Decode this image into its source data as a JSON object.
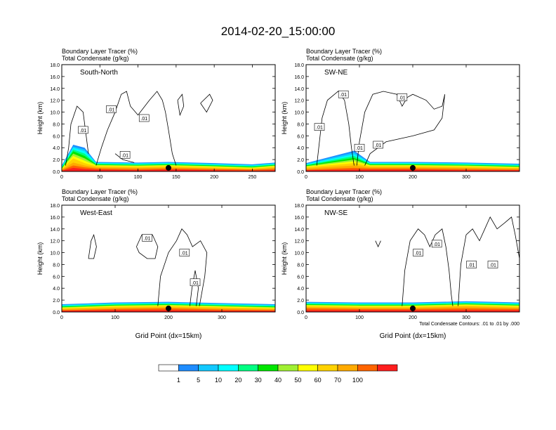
{
  "title": "2014-02-20_15:00:00",
  "colors": {
    "tracer_levels": [
      "#ffffff",
      "#1e8cff",
      "#12c8ff",
      "#00ffff",
      "#00ff82",
      "#00e600",
      "#a0f032",
      "#ffff00",
      "#ffd200",
      "#ffaa00",
      "#ff6400",
      "#ff1e1e"
    ],
    "contour": "#000000"
  },
  "chart_data": [
    {
      "type": "heatmap",
      "name_label": "South-North",
      "subtitle_line1": "Boundary Layer Tracer   (%)",
      "subtitle_line2": "Total Condensate   (g/kg)",
      "ylabel": "Height (km)",
      "xlabel": "",
      "xlim": [
        0,
        280
      ],
      "ylim": [
        0,
        18
      ],
      "xticks": [
        0,
        50,
        100,
        150,
        200,
        250
      ],
      "yticks": [
        "0.0",
        "2.0",
        "4.0",
        "6.0",
        "8.0",
        "10.0",
        "12.0",
        "14.0",
        "16.0",
        "18.0"
      ],
      "marker_x": 140,
      "contour_labels": [
        {
          "text": ".01",
          "x": 28,
          "y": 7.0
        },
        {
          "text": ".01",
          "x": 65,
          "y": 10.5
        },
        {
          "text": ".01",
          "x": 108,
          "y": 9.0
        },
        {
          "text": ".01",
          "x": 83,
          "y": 2.8
        }
      ],
      "contours": [
        [
          [
            5,
            1
          ],
          [
            9,
            4
          ],
          [
            12,
            8
          ],
          [
            20,
            11
          ],
          [
            28,
            10
          ],
          [
            32,
            6
          ],
          [
            35,
            3
          ]
        ],
        [
          [
            45,
            1
          ],
          [
            52,
            4
          ],
          [
            60,
            7
          ],
          [
            70,
            10
          ],
          [
            78,
            13
          ],
          [
            85,
            13.5
          ],
          [
            90,
            11
          ],
          [
            100,
            9.5
          ],
          [
            115,
            12
          ],
          [
            125,
            13.5
          ],
          [
            132,
            12
          ],
          [
            136,
            10
          ],
          [
            140,
            7
          ],
          [
            145,
            3
          ],
          [
            150,
            1
          ]
        ],
        [
          [
            70,
            3
          ],
          [
            80,
            2
          ],
          [
            95,
            1.5
          ]
        ],
        [
          [
            152,
            12
          ],
          [
            155,
            9.5
          ],
          [
            160,
            11
          ],
          [
            158,
            13
          ],
          [
            152,
            12
          ]
        ],
        [
          [
            182,
            11.5
          ],
          [
            190,
            10
          ],
          [
            198,
            12
          ],
          [
            194,
            13
          ],
          [
            182,
            11.5
          ]
        ]
      ],
      "tracer_profile": [
        {
          "x": 0,
          "depth": [
            1.0,
            0.9,
            0.8,
            0.7,
            0.6,
            0.5,
            0.45,
            0.4,
            0.3,
            0.2,
            0.1
          ]
        },
        {
          "x": 15,
          "depth": [
            4.5,
            4.2,
            4.0,
            3.7,
            3.4,
            3.0,
            2.6,
            2.2,
            1.5,
            1.0,
            0.6
          ]
        },
        {
          "x": 30,
          "depth": [
            4.0,
            3.7,
            3.4,
            3.0,
            2.6,
            2.2,
            1.8,
            1.4,
            1.0,
            0.7,
            0.4
          ]
        },
        {
          "x": 45,
          "depth": [
            1.6,
            1.5,
            1.4,
            1.3,
            1.2,
            1.1,
            1.0,
            0.9,
            0.7,
            0.5,
            0.3
          ]
        },
        {
          "x": 100,
          "depth": [
            1.5,
            1.4,
            1.3,
            1.2,
            1.1,
            1.0,
            0.9,
            0.8,
            0.6,
            0.4,
            0.2
          ]
        },
        {
          "x": 140,
          "depth": [
            1.6,
            1.5,
            1.4,
            1.3,
            1.2,
            1.1,
            1.0,
            0.9,
            0.7,
            0.5,
            0.3
          ]
        },
        {
          "x": 200,
          "depth": [
            1.4,
            1.3,
            1.2,
            1.1,
            1.0,
            0.9,
            0.8,
            0.7,
            0.5,
            0.4,
            0.2
          ]
        },
        {
          "x": 250,
          "depth": [
            1.2,
            1.1,
            1.0,
            0.9,
            0.8,
            0.7,
            0.6,
            0.5,
            0.4,
            0.3,
            0.15
          ]
        },
        {
          "x": 280,
          "depth": [
            1.5,
            1.4,
            1.3,
            1.2,
            1.1,
            1.0,
            0.9,
            0.8,
            0.6,
            0.4,
            0.2
          ]
        }
      ]
    },
    {
      "type": "heatmap",
      "name_label": "SW-NE",
      "subtitle_line1": "Boundary Layer Tracer   (%)",
      "subtitle_line2": "Total Condensate   (g/kg)",
      "ylabel": "Height (km)",
      "xlabel": "",
      "xlim": [
        0,
        400
      ],
      "ylim": [
        0,
        18
      ],
      "xticks": [
        0,
        100,
        200,
        300
      ],
      "yticks": [
        "0.0",
        "2.0",
        "4.0",
        "6.0",
        "8.0",
        "10.0",
        "12.0",
        "14.0",
        "16.0",
        "18.0"
      ],
      "marker_x": 200,
      "contour_labels": [
        {
          "text": ".01",
          "x": 25,
          "y": 7.5
        },
        {
          "text": ".01",
          "x": 70,
          "y": 13.0
        },
        {
          "text": ".01",
          "x": 100,
          "y": 4.0
        },
        {
          "text": ".01",
          "x": 135,
          "y": 4.5
        },
        {
          "text": ".01",
          "x": 180,
          "y": 12.5
        }
      ],
      "contours": [
        [
          [
            20,
            1
          ],
          [
            25,
            5
          ],
          [
            30,
            9
          ],
          [
            40,
            12
          ],
          [
            60,
            13.5
          ],
          [
            72,
            12
          ],
          [
            80,
            8
          ],
          [
            85,
            4
          ],
          [
            90,
            1
          ]
        ],
        [
          [
            95,
            1
          ],
          [
            100,
            5
          ],
          [
            110,
            10
          ],
          [
            125,
            13
          ],
          [
            145,
            13.5
          ],
          [
            170,
            13
          ],
          [
            180,
            11
          ],
          [
            190,
            12.5
          ],
          [
            200,
            13
          ],
          [
            225,
            12
          ],
          [
            240,
            10.5
          ],
          [
            255,
            11
          ],
          [
            260,
            13
          ],
          [
            255,
            9
          ],
          [
            240,
            7
          ],
          [
            200,
            6
          ],
          [
            150,
            5
          ],
          [
            120,
            3
          ],
          [
            110,
            1
          ]
        ]
      ],
      "tracer_profile": [
        {
          "x": 0,
          "depth": [
            1.4,
            1.3,
            1.2,
            1.1,
            1.0,
            0.9,
            0.8,
            0.7,
            0.5,
            0.3,
            0.2
          ]
        },
        {
          "x": 90,
          "depth": [
            3.5,
            3.2,
            2.9,
            2.6,
            2.3,
            2.0,
            1.7,
            1.4,
            1.0,
            0.6,
            0.3
          ]
        },
        {
          "x": 120,
          "depth": [
            1.6,
            1.5,
            1.4,
            1.3,
            1.2,
            1.1,
            1.0,
            0.9,
            0.7,
            0.5,
            0.3
          ]
        },
        {
          "x": 200,
          "depth": [
            1.6,
            1.5,
            1.4,
            1.3,
            1.2,
            1.1,
            1.0,
            0.9,
            0.7,
            0.5,
            0.3
          ]
        },
        {
          "x": 300,
          "depth": [
            1.5,
            1.4,
            1.3,
            1.2,
            1.1,
            1.0,
            0.9,
            0.8,
            0.6,
            0.4,
            0.2
          ]
        },
        {
          "x": 400,
          "depth": [
            1.3,
            1.2,
            1.1,
            1.0,
            0.9,
            0.8,
            0.7,
            0.6,
            0.5,
            0.3,
            0.2
          ]
        }
      ]
    },
    {
      "type": "heatmap",
      "name_label": "West-East",
      "subtitle_line1": "Boundary Layer Tracer   (%)",
      "subtitle_line2": "Total Condensate   (g/kg)",
      "ylabel": "Height (km)",
      "xlabel": "Grid Point (dx=15km)",
      "xlim": [
        0,
        400
      ],
      "ylim": [
        0,
        18
      ],
      "xticks": [
        0,
        100,
        200,
        300
      ],
      "yticks": [
        "0.0",
        "2.0",
        "4.0",
        "6.0",
        "8.0",
        "10.0",
        "12.0",
        "14.0",
        "16.0",
        "18.0"
      ],
      "marker_x": 200,
      "contour_labels": [
        {
          "text": ".01",
          "x": 160,
          "y": 12.5
        },
        {
          "text": ".01",
          "x": 230,
          "y": 10.0
        },
        {
          "text": ".01",
          "x": 250,
          "y": 5.0
        }
      ],
      "contours": [
        [
          [
            50,
            9
          ],
          [
            55,
            12
          ],
          [
            60,
            13
          ],
          [
            65,
            11
          ],
          [
            60,
            9
          ],
          [
            50,
            9
          ]
        ],
        [
          [
            140,
            11
          ],
          [
            150,
            13
          ],
          [
            170,
            13
          ],
          [
            180,
            11
          ],
          [
            175,
            9
          ],
          [
            160,
            9
          ],
          [
            145,
            10
          ],
          [
            140,
            11
          ]
        ],
        [
          [
            180,
            1
          ],
          [
            185,
            6
          ],
          [
            200,
            10
          ],
          [
            215,
            12
          ],
          [
            225,
            14
          ],
          [
            235,
            13
          ],
          [
            245,
            11
          ],
          [
            260,
            12
          ],
          [
            272,
            10
          ],
          [
            268,
            6
          ],
          [
            262,
            3
          ],
          [
            258,
            1
          ]
        ],
        [
          [
            240,
            1
          ],
          [
            244,
            4
          ],
          [
            250,
            7
          ],
          [
            256,
            4
          ],
          [
            252,
            1
          ]
        ]
      ],
      "tracer_profile": [
        {
          "x": 0,
          "depth": [
            1.3,
            1.2,
            1.1,
            1.0,
            0.9,
            0.8,
            0.7,
            0.6,
            0.5,
            0.3,
            0.2
          ]
        },
        {
          "x": 100,
          "depth": [
            1.6,
            1.5,
            1.4,
            1.3,
            1.2,
            1.1,
            1.0,
            0.9,
            0.7,
            0.5,
            0.3
          ]
        },
        {
          "x": 200,
          "depth": [
            1.7,
            1.6,
            1.5,
            1.4,
            1.3,
            1.2,
            1.1,
            1.0,
            0.8,
            0.6,
            0.3
          ]
        },
        {
          "x": 300,
          "depth": [
            1.5,
            1.4,
            1.3,
            1.2,
            1.1,
            1.0,
            0.9,
            0.8,
            0.6,
            0.4,
            0.2
          ]
        },
        {
          "x": 400,
          "depth": [
            1.3,
            1.2,
            1.1,
            1.0,
            0.9,
            0.8,
            0.7,
            0.6,
            0.5,
            0.3,
            0.2
          ]
        }
      ]
    },
    {
      "type": "heatmap",
      "name_label": "NW-SE",
      "subtitle_line1": "Boundary Layer Tracer   (%)",
      "subtitle_line2": "Total Condensate   (g/kg)",
      "ylabel": "Height (km)",
      "xlabel": "Grid Point (dx=15km)",
      "xlim": [
        0,
        400
      ],
      "ylim": [
        0,
        18
      ],
      "xticks": [
        0,
        100,
        200,
        300
      ],
      "yticks": [
        "0.0",
        "2.0",
        "4.0",
        "6.0",
        "8.0",
        "10.0",
        "12.0",
        "14.0",
        "16.0",
        "18.0"
      ],
      "marker_x": 200,
      "footnote": "Total Condensate Contours: .01 to .01 by .000",
      "contour_labels": [
        {
          "text": ".01",
          "x": 210,
          "y": 10.0
        },
        {
          "text": ".01",
          "x": 245,
          "y": 11.5
        },
        {
          "text": ".01",
          "x": 310,
          "y": 8.0
        },
        {
          "text": ".01",
          "x": 350,
          "y": 8.0
        }
      ],
      "contours": [
        [
          [
            180,
            1
          ],
          [
            185,
            7
          ],
          [
            195,
            12
          ],
          [
            210,
            14
          ],
          [
            222,
            13
          ],
          [
            232,
            11
          ],
          [
            242,
            13
          ],
          [
            255,
            14
          ],
          [
            262,
            11
          ],
          [
            268,
            7
          ],
          [
            272,
            3
          ],
          [
            275,
            1
          ]
        ],
        [
          [
            285,
            1
          ],
          [
            290,
            8
          ],
          [
            300,
            13
          ],
          [
            312,
            14
          ],
          [
            325,
            12
          ],
          [
            335,
            14
          ],
          [
            345,
            16
          ],
          [
            358,
            14
          ],
          [
            372,
            15
          ],
          [
            385,
            16
          ],
          [
            392,
            13
          ],
          [
            400,
            9
          ]
        ],
        [
          [
            130,
            12
          ],
          [
            135,
            11
          ],
          [
            140,
            12
          ]
        ]
      ],
      "tracer_profile": [
        {
          "x": 0,
          "depth": [
            1.7,
            1.6,
            1.5,
            1.4,
            1.3,
            1.2,
            1.1,
            1.0,
            0.8,
            0.6,
            0.3
          ]
        },
        {
          "x": 100,
          "depth": [
            1.6,
            1.5,
            1.4,
            1.3,
            1.2,
            1.1,
            1.0,
            0.9,
            0.7,
            0.5,
            0.3
          ]
        },
        {
          "x": 200,
          "depth": [
            1.6,
            1.5,
            1.4,
            1.3,
            1.2,
            1.1,
            1.0,
            0.9,
            0.7,
            0.5,
            0.3
          ]
        },
        {
          "x": 300,
          "depth": [
            1.8,
            1.7,
            1.6,
            1.5,
            1.4,
            1.3,
            1.2,
            1.1,
            0.9,
            0.6,
            0.3
          ]
        },
        {
          "x": 400,
          "depth": [
            1.6,
            1.5,
            1.4,
            1.3,
            1.2,
            1.1,
            1.0,
            0.9,
            0.7,
            0.5,
            0.3
          ]
        }
      ]
    }
  ],
  "colorbar": {
    "labels": [
      "1",
      "5",
      "10",
      "20",
      "30",
      "40",
      "50",
      "60",
      "70",
      "100"
    ],
    "colors": [
      "#ffffff",
      "#1e8cff",
      "#12c8ff",
      "#00ffff",
      "#00ff82",
      "#00e600",
      "#a0f032",
      "#ffff00",
      "#ffd200",
      "#ffaa00",
      "#ff6400",
      "#ff1e1e"
    ]
  }
}
